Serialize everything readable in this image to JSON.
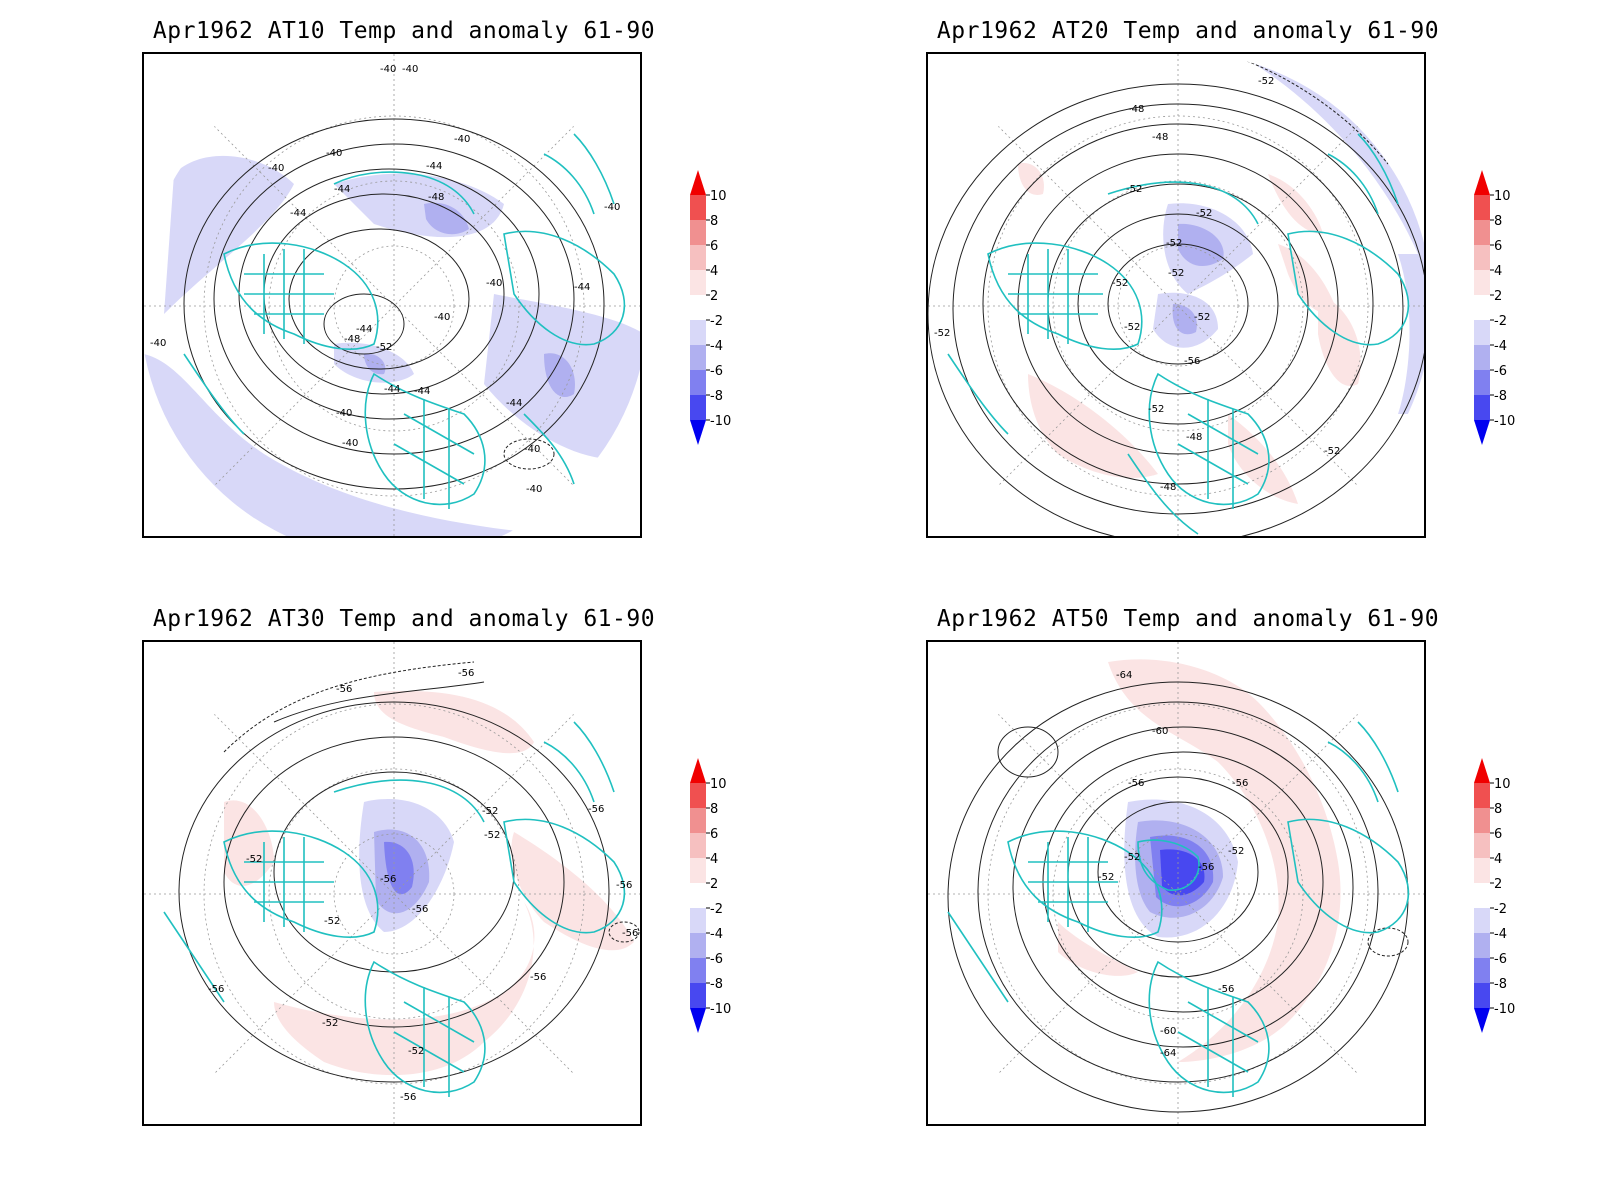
{
  "colors": {
    "coast": "#20c0c0",
    "neg2": "#d8d8f8",
    "neg4": "#b0b0f0",
    "neg6": "#8080f0",
    "neg8": "#4848f0",
    "neg10": "#0000f0",
    "pos2": "#fbe4e4",
    "pos4": "#f6c0c0",
    "pos6": "#f09090",
    "pos8": "#f05050",
    "pos10": "#f00000"
  },
  "colorbar": {
    "ticks": [
      "10",
      "8",
      "6",
      "4",
      "2",
      "-2",
      "-4",
      "-6",
      "-8",
      "-10"
    ]
  },
  "panels": [
    {
      "id": "at10",
      "title": "Apr1962 AT10 Temp and anomaly 61-90",
      "contour_labels": [
        "-40",
        "-40",
        "-40",
        "-40",
        "-44",
        "-44",
        "-44",
        "-48",
        "-48",
        "-52",
        "-44",
        "-40",
        "-40",
        "-40",
        "-44",
        "-40",
        "-40",
        "-40",
        "-44",
        "-44",
        "-44",
        "-40",
        "-40",
        "-40"
      ]
    },
    {
      "id": "at20",
      "title": "Apr1962 AT20 Temp and anomaly 61-90",
      "contour_labels": [
        "-52",
        "-48",
        "-48",
        "-52",
        "-52",
        "-52",
        "-52",
        "-52",
        "-52",
        "-52",
        "-56",
        "-52",
        "-48",
        "-48",
        "-52",
        "-52"
      ]
    },
    {
      "id": "at30",
      "title": "Apr1962 AT30 Temp and anomaly 61-90",
      "contour_labels": [
        "-56",
        "-56",
        "-52",
        "-52",
        "-52",
        "-56",
        "-56",
        "-52",
        "-56",
        "-56",
        "-56",
        "-52",
        "-52",
        "-56",
        "-56",
        "-56"
      ]
    },
    {
      "id": "at50",
      "title": "Apr1962 AT50 Temp and anomaly 61-90",
      "contour_labels": [
        "-64",
        "-60",
        "-56",
        "-56",
        "-52",
        "-52",
        "-56",
        "-52",
        "-56",
        "-60",
        "-64"
      ]
    }
  ]
}
